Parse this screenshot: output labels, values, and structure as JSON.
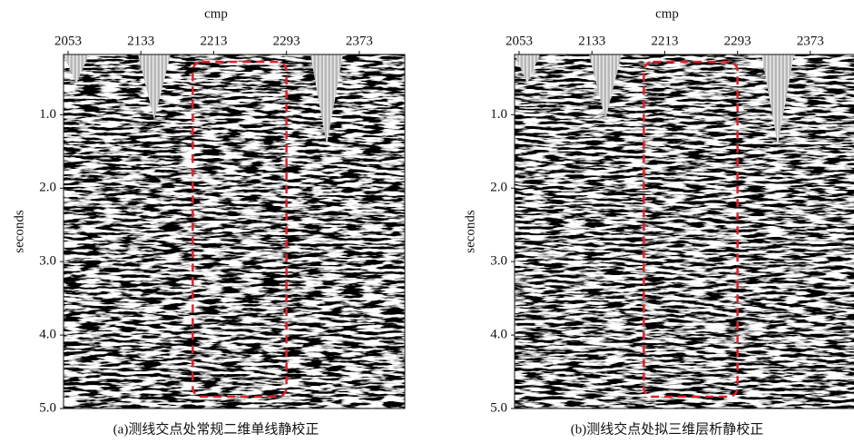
{
  "chart_data": [
    {
      "type": "seismic",
      "title": "cmp",
      "y_label": "seconds",
      "caption": "(a)测线交点处常规二维单线静校正",
      "xlim": [
        2048,
        2423
      ],
      "xticks": [
        2053,
        2133,
        2213,
        2293,
        2373
      ],
      "ylim": [
        0.18,
        5.0
      ],
      "yticks": [
        {
          "value": 1,
          "label": "1.0"
        },
        {
          "value": 2,
          "label": "2.0"
        },
        {
          "value": 3,
          "label": "3.0"
        },
        {
          "value": 4,
          "label": "4.0"
        },
        {
          "value": 5,
          "label": "5.0"
        }
      ],
      "highlight": {
        "x": [
          2190,
          2293
        ],
        "y": [
          0.28,
          4.84
        ],
        "color": "#e0202a"
      }
    },
    {
      "type": "seismic",
      "title": "cmp",
      "y_label": "seconds",
      "caption": "(b)测线交点处拟三维层析静校正",
      "xlim": [
        2048,
        2423
      ],
      "xticks": [
        2053,
        2133,
        2213,
        2293,
        2373
      ],
      "ylim": [
        0.18,
        5.0
      ],
      "yticks": [
        {
          "value": 1,
          "label": "1.0"
        },
        {
          "value": 2,
          "label": "2.0"
        },
        {
          "value": 3,
          "label": "3.0"
        },
        {
          "value": 4,
          "label": "4.0"
        },
        {
          "value": 5,
          "label": "5.0"
        }
      ],
      "highlight": {
        "x": [
          2190,
          2293
        ],
        "y": [
          0.28,
          4.84
        ],
        "color": "#e0202a"
      }
    }
  ]
}
